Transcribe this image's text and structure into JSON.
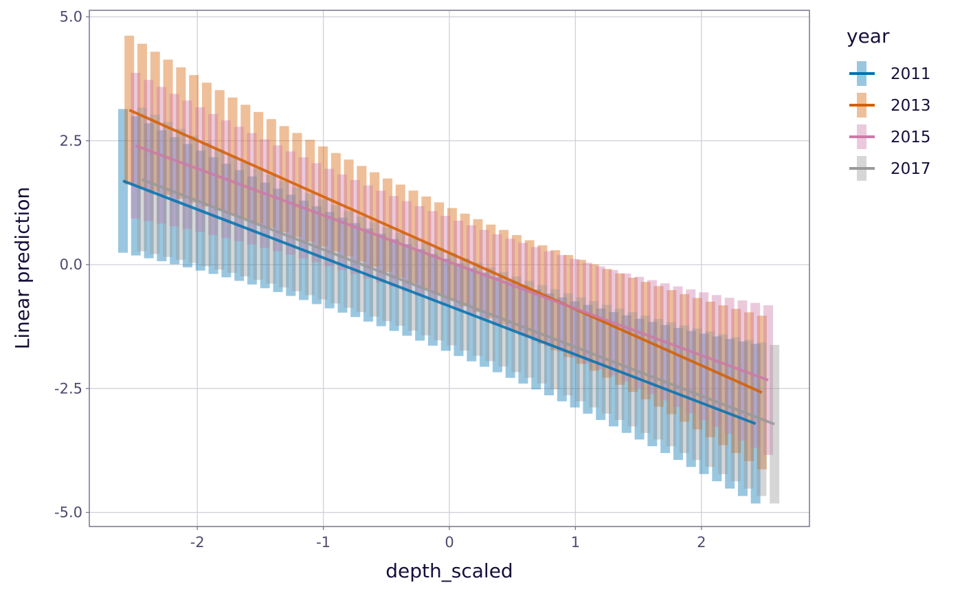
{
  "chart_data": {
    "type": "line",
    "title": "",
    "xlabel": "depth_scaled",
    "ylabel": "Linear prediction",
    "xlim": [
      -2.85,
      2.85
    ],
    "ylim": [
      -5.3,
      5.05
    ],
    "x_ticks": [
      -2,
      -1,
      0,
      1,
      2
    ],
    "x_tick_labels": [
      "-2",
      "-1",
      "0",
      "1",
      "2"
    ],
    "y_ticks": [
      5.0,
      2.5,
      0.0,
      -2.5,
      -5.0
    ],
    "y_tick_labels": [
      "5.0",
      "2.5",
      "0.0",
      "-2.5",
      "-5.0"
    ],
    "grid": true,
    "legend": {
      "title": "year",
      "placement": "right"
    },
    "n_points_per_series": 50,
    "series": [
      {
        "name": "2011",
        "color": "#0072B2",
        "x_range": [
          -2.59,
          2.43
        ],
        "fit": [
          1.69,
          -3.21
        ],
        "interval_halfwidth": {
          "start": 1.45,
          "center": 0.93,
          "end": 1.61
        }
      },
      {
        "name": "2013",
        "color": "#D55E00",
        "x_range": [
          -2.54,
          2.48
        ],
        "fit": [
          3.12,
          -2.58
        ],
        "interval_halfwidth": {
          "start": 1.5,
          "center": 0.93,
          "end": 1.55
        }
      },
      {
        "name": "2015",
        "color": "#CC79A7",
        "x_range": [
          -2.49,
          2.53
        ],
        "fit": [
          2.4,
          -2.33
        ],
        "interval_halfwidth": {
          "start": 1.47,
          "center": 0.9,
          "end": 1.51
        }
      },
      {
        "name": "2017",
        "color": "#999999",
        "x_range": [
          -2.44,
          2.58
        ],
        "fit": [
          1.72,
          -3.22
        ],
        "interval_halfwidth": {
          "start": 1.45,
          "center": 0.93,
          "end": 1.6
        }
      }
    ]
  }
}
